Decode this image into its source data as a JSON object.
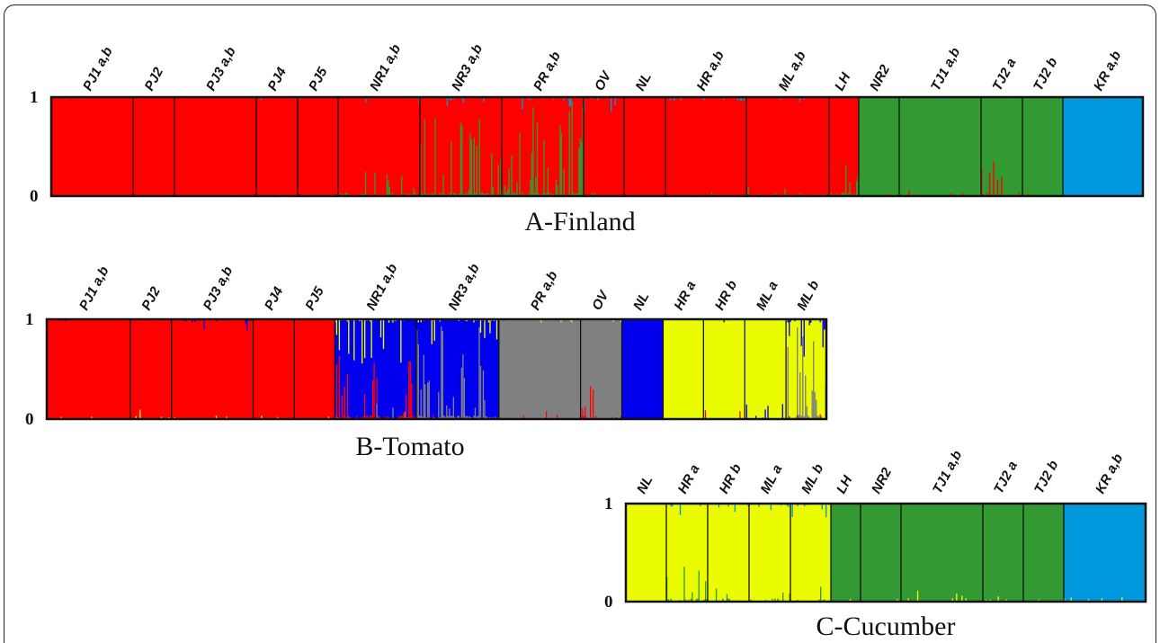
{
  "chart_data": [
    {
      "type": "bar",
      "subtype": "stacked-membership",
      "title": "A-Finland",
      "ylim": [
        0,
        1
      ],
      "yticks": [
        "0",
        "1"
      ],
      "cluster_colors": {
        "red": "#ff0000",
        "green": "#339933",
        "blue": "#0099dd"
      },
      "populations": [
        {
          "label": "PJ1 a,b",
          "dominant": "red",
          "mix": {
            "green": 0.01,
            "blue": 0.01
          }
        },
        {
          "label": "PJ2",
          "dominant": "red",
          "mix": {
            "green": 0.01,
            "blue": 0.01
          }
        },
        {
          "label": "PJ3 a,b",
          "dominant": "red",
          "mix": {
            "green": 0.01,
            "blue": 0.01
          }
        },
        {
          "label": "PJ4",
          "dominant": "red",
          "mix": {
            "green": 0.01,
            "blue": 0.01
          }
        },
        {
          "label": "PJ5",
          "dominant": "red",
          "mix": {
            "green": 0.02,
            "blue": 0.02
          }
        },
        {
          "label": "NR1 a,b",
          "dominant": "red",
          "mix": {
            "green": 0.08,
            "blue": 0.02
          }
        },
        {
          "label": "NR3 a,b",
          "dominant": "red",
          "mix": {
            "green": 0.25,
            "blue": 0.03
          }
        },
        {
          "label": "PR a,b",
          "dominant": "red",
          "mix": {
            "green": 0.3,
            "blue": 0.05
          }
        },
        {
          "label": "OV",
          "dominant": "red",
          "mix": {
            "green": 0.06,
            "blue": 0.05
          }
        },
        {
          "label": "NL",
          "dominant": "red",
          "mix": {
            "green": 0.01,
            "blue": 0.01
          }
        },
        {
          "label": "HR a,b",
          "dominant": "red",
          "mix": {
            "green": 0.02,
            "blue": 0.02
          }
        },
        {
          "label": "ML a,b",
          "dominant": "red",
          "mix": {
            "green": 0.03,
            "blue": 0.02
          }
        },
        {
          "label": "LH",
          "dominant": "red",
          "mix": {
            "green": 0.15,
            "blue": 0.01
          }
        },
        {
          "label": "NR2",
          "dominant": "green",
          "mix": {
            "red": 0.05,
            "blue": 0.01
          }
        },
        {
          "label": "TJ1 a,b",
          "dominant": "green",
          "mix": {
            "red": 0.02,
            "blue": 0.01
          }
        },
        {
          "label": "TJ2 a",
          "dominant": "green",
          "mix": {
            "red": 0.12,
            "blue": 0.01
          }
        },
        {
          "label": "TJ2 b",
          "dominant": "green",
          "mix": {
            "red": 0.01,
            "blue": 0.01
          }
        },
        {
          "label": "KR a,b",
          "dominant": "blue",
          "mix": {
            "red": 0.02,
            "green": 0.01
          }
        }
      ]
    },
    {
      "type": "bar",
      "subtype": "stacked-membership",
      "title": "B-Tomato",
      "ylim": [
        0,
        1
      ],
      "yticks": [
        "0",
        "1"
      ],
      "cluster_colors": {
        "red": "#ff0000",
        "blue": "#0000ee",
        "gray": "#808080",
        "yellow": "#ecfc00"
      },
      "populations": [
        {
          "label": "PJ1 a,b",
          "dominant": "red",
          "mix": {
            "yellow": 0.01,
            "blue": 0.01
          }
        },
        {
          "label": "PJ2",
          "dominant": "red",
          "mix": {
            "yellow": 0.03,
            "blue": 0.01
          }
        },
        {
          "label": "PJ3 a,b",
          "dominant": "red",
          "mix": {
            "yellow": 0.02,
            "blue": 0.04
          }
        },
        {
          "label": "PJ4",
          "dominant": "red",
          "mix": {
            "yellow": 0.02,
            "blue": 0.01
          }
        },
        {
          "label": "PJ5",
          "dominant": "red",
          "mix": {
            "yellow": 0.01,
            "blue": 0.04
          }
        },
        {
          "label": "NR1 a,b",
          "dominant": "blue",
          "mix": {
            "red": 0.2,
            "yellow": 0.15,
            "gray": 0.05
          }
        },
        {
          "label": "NR3 a,b",
          "dominant": "blue",
          "mix": {
            "gray": 0.3,
            "yellow": 0.1,
            "red": 0.02
          }
        },
        {
          "label": "PR a,b",
          "dominant": "gray",
          "mix": {
            "red": 0.03,
            "yellow": 0.01
          }
        },
        {
          "label": "OV",
          "dominant": "gray",
          "mix": {
            "red": 0.12,
            "yellow": 0.05
          }
        },
        {
          "label": "NL",
          "dominant": "blue",
          "mix": {
            "red": 0.01
          }
        },
        {
          "label": "HR a",
          "dominant": "yellow",
          "mix": {
            "red": 0.01
          }
        },
        {
          "label": "HR b",
          "dominant": "yellow",
          "mix": {
            "red": 0.04,
            "blue": 0.02
          }
        },
        {
          "label": "ML a",
          "dominant": "yellow",
          "mix": {
            "blue": 0.07,
            "red": 0.02
          }
        },
        {
          "label": "ML b",
          "dominant": "yellow",
          "mix": {
            "gray": 0.35,
            "blue": 0.12,
            "red": 0.03
          }
        }
      ]
    },
    {
      "type": "bar",
      "subtype": "stacked-membership",
      "title": "C-Cucumber",
      "ylim": [
        0,
        1
      ],
      "yticks": [
        "0",
        "1"
      ],
      "cluster_colors": {
        "yellow": "#ecfc00",
        "green": "#339933",
        "blue": "#0099dd"
      },
      "populations": [
        {
          "label": "NL",
          "dominant": "yellow",
          "mix": {
            "blue": 0.01
          }
        },
        {
          "label": "HR a",
          "dominant": "yellow",
          "mix": {
            "green": 0.12,
            "blue": 0.04
          }
        },
        {
          "label": "HR b",
          "dominant": "yellow",
          "mix": {
            "green": 0.08,
            "blue": 0.04
          }
        },
        {
          "label": "ML a",
          "dominant": "yellow",
          "mix": {
            "green": 0.05,
            "blue": 0.05
          }
        },
        {
          "label": "ML b",
          "dominant": "yellow",
          "mix": {
            "green": 0.05,
            "blue": 0.05
          }
        },
        {
          "label": "LH",
          "dominant": "green",
          "mix": {
            "yellow": 0.03
          }
        },
        {
          "label": "NR2",
          "dominant": "green",
          "mix": {
            "yellow": 0.02
          }
        },
        {
          "label": "TJ1 a,b",
          "dominant": "green",
          "mix": {
            "yellow": 0.04
          }
        },
        {
          "label": "TJ2 a",
          "dominant": "green",
          "mix": {
            "yellow": 0.04
          }
        },
        {
          "label": "TJ2 b",
          "dominant": "green",
          "mix": {
            "yellow": 0.01
          }
        },
        {
          "label": "KR a,b",
          "dominant": "blue",
          "mix": {
            "yellow": 0.02
          }
        }
      ]
    }
  ]
}
